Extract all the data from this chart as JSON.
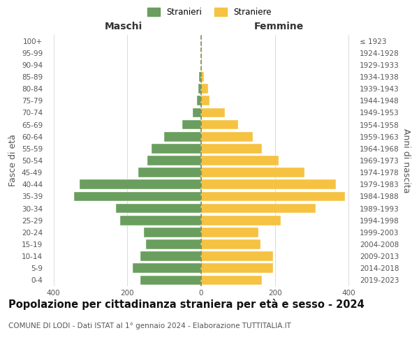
{
  "age_groups": [
    "100+",
    "95-99",
    "90-94",
    "85-89",
    "80-84",
    "75-79",
    "70-74",
    "65-69",
    "60-64",
    "55-59",
    "50-54",
    "45-49",
    "40-44",
    "35-39",
    "30-34",
    "25-29",
    "20-24",
    "15-19",
    "10-14",
    "5-9",
    "0-4"
  ],
  "birth_years": [
    "≤ 1923",
    "1924-1928",
    "1929-1933",
    "1934-1938",
    "1939-1943",
    "1944-1948",
    "1949-1953",
    "1954-1958",
    "1959-1963",
    "1964-1968",
    "1969-1973",
    "1974-1978",
    "1979-1983",
    "1984-1988",
    "1989-1993",
    "1994-1998",
    "1999-2003",
    "2004-2008",
    "2009-2013",
    "2014-2018",
    "2019-2023"
  ],
  "males": [
    0,
    0,
    0,
    5,
    8,
    12,
    22,
    52,
    100,
    135,
    145,
    170,
    330,
    345,
    230,
    220,
    155,
    150,
    165,
    185,
    165
  ],
  "females": [
    0,
    0,
    0,
    8,
    18,
    22,
    65,
    100,
    140,
    165,
    210,
    280,
    365,
    390,
    310,
    215,
    155,
    160,
    195,
    195,
    165
  ],
  "male_color": "#6a9e5e",
  "female_color": "#f5c242",
  "center_line_color": "#888844",
  "grid_color": "#cccccc",
  "background_color": "#ffffff",
  "title": "Popolazione per cittadinanza straniera per età e sesso - 2024",
  "subtitle": "COMUNE DI LODI - Dati ISTAT al 1° gennaio 2024 - Elaborazione TUTTITALIA.IT",
  "xlabel_left": "Maschi",
  "xlabel_right": "Femmine",
  "ylabel_left": "Fasce di età",
  "ylabel_right": "Anni di nascita",
  "legend_males": "Stranieri",
  "legend_females": "Straniere",
  "xlim": 420,
  "title_fontsize": 10.5,
  "subtitle_fontsize": 7.5,
  "tick_fontsize": 7.5,
  "label_fontsize": 9
}
